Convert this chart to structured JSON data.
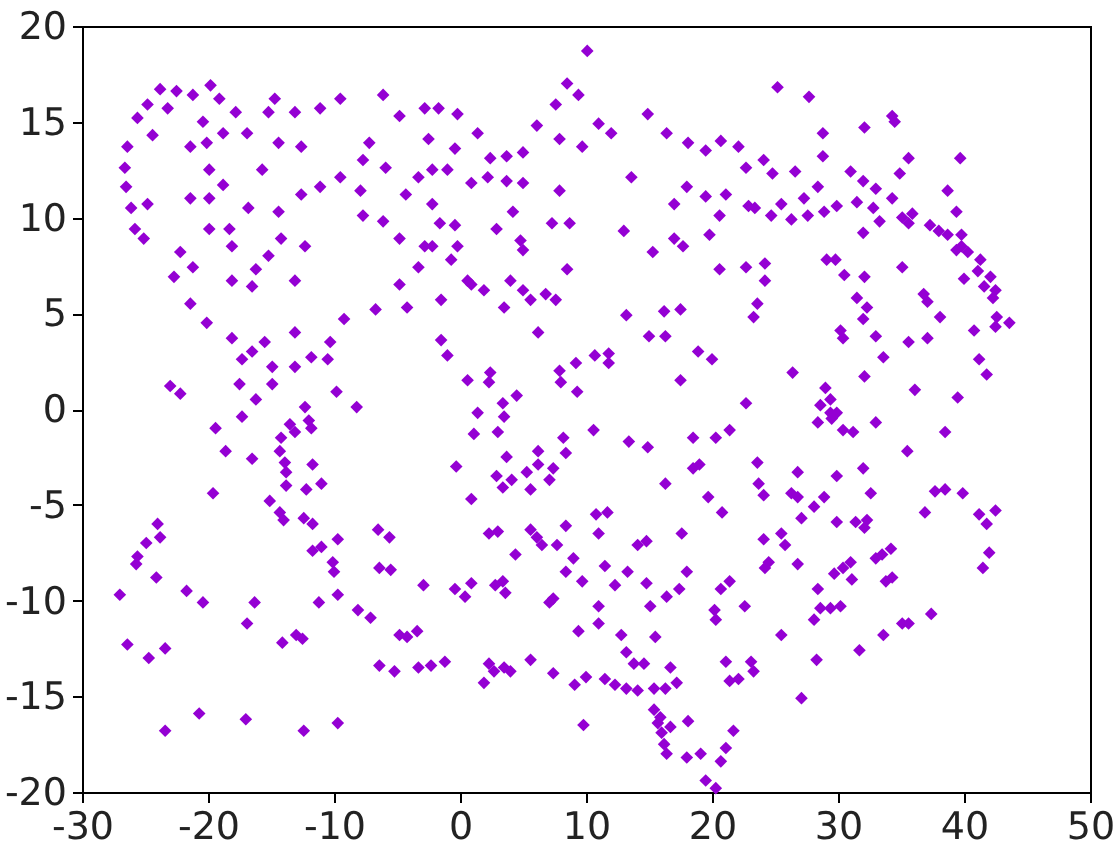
{
  "chart_data": {
    "type": "scatter",
    "color": "#9400d3",
    "marker": "diamond",
    "xlim": [
      -30,
      50
    ],
    "xticks": [
      -30,
      -20,
      -10,
      0,
      10,
      20,
      30,
      40,
      50
    ],
    "ylim": [
      -20,
      20
    ],
    "yticks": [
      -20,
      -15,
      -10,
      -5,
      0,
      5,
      10,
      15,
      20
    ],
    "x": [
      -26.4,
      -26.6,
      -26.5,
      -26.1,
      -25.8,
      -25.1,
      -25.6,
      -24.8,
      -23.8,
      -22.5,
      -21.2,
      -19.8,
      -19.1,
      -20.4,
      -18.8,
      -17.8,
      -21.4,
      -20.1,
      -24.4,
      -23.2,
      -16.9,
      -15.7,
      -15.2,
      -14.7,
      -13.1,
      -11.1,
      -9.5,
      -6.1,
      -4.8,
      -2.8,
      -14.4,
      -12.6,
      -7.2,
      -5.9,
      -7.7,
      -3.3,
      -4.3,
      -19.9,
      -19.9,
      -18.8,
      -21.4,
      -24.8,
      -19.9,
      -18.3,
      -18.1,
      -16.8,
      -14.4,
      -12.6,
      -11.1,
      -9.5,
      -7.9,
      -7.7,
      -6.1,
      -4.8,
      -2.8,
      -14.2,
      -12.3,
      -15.2,
      -16.2,
      -16.5,
      -18.1,
      -13.1,
      -22.7,
      -22.2,
      -21.2,
      -21.4,
      -20.1,
      -18.1,
      -15.5,
      -16.5,
      -17.3,
      -14.9,
      -13.1,
      -11.8,
      -13.1,
      -10.3,
      -9.2,
      -10.5,
      -23.0,
      -22.2,
      -17.5,
      -16.2,
      -14.9,
      -12.3,
      -9.8,
      -8.2,
      -6.7,
      -4.8,
      -4.2,
      -3.3,
      10.1,
      8.5,
      9.4,
      7.6,
      6.1,
      7.9,
      9.7,
      11.0,
      12.0,
      14.9,
      16.4,
      18.1,
      19.5,
      20.7,
      22.1,
      24.1,
      22.7,
      13.6,
      18.0,
      17.0,
      19.5,
      21.1,
      20.6,
      19.8,
      22.9,
      13.0,
      15.3,
      17.0,
      17.7,
      20.6,
      22.7,
      24.2,
      23.6,
      23.3,
      13.2,
      16.2,
      17.5,
      15.0,
      16.3,
      18.9,
      20.0,
      17.5,
      22.7,
      10.7,
      11.8,
      11.8,
      9.2,
      7.9,
      8.0,
      9.3,
      4.5,
      3.4,
      2.4,
      2.3,
      1.4,
      0.6,
      -1.0,
      -1.5,
      6.2,
      7.6,
      6.8,
      5.6,
      5.0,
      4.0,
      3.5,
      1.9,
      0.9,
      -1.5,
      8.5,
      7.3,
      8.7,
      7.9,
      4.8,
      5.0,
      4.2,
      2.9,
      -0.2,
      -0.7,
      -2.2,
      -0.4,
      -1.6,
      -2.2,
      -2.2,
      -1.0,
      -2.5,
      -1.7,
      -0.2,
      1.4,
      -0.4,
      0.9,
      2.2,
      2.4,
      3.7,
      5.0,
      3.7,
      5.0,
      0.6,
      25.2,
      27.7,
      28.8,
      32.1,
      34.3,
      34.5,
      28.8,
      26.6,
      24.8,
      28.4,
      27.3,
      25.5,
      23.4,
      24.7,
      26.3,
      27.6,
      28.9,
      29.9,
      31.0,
      32.0,
      33.0,
      31.5,
      32.8,
      33.3,
      32.0,
      34.9,
      35.6,
      34.3,
      35.1,
      35.9,
      35.6,
      38.7,
      39.7,
      39.4,
      37.3,
      38.0,
      38.7,
      39.8,
      39.8,
      39.4,
      40.3,
      41.3,
      41.1,
      42.1,
      42.5,
      42.3,
      41.6,
      42.6,
      43.6,
      42.5,
      40.0,
      38.1,
      37.1,
      35.6,
      35.1,
      36.8,
      37.1,
      40.8,
      41.2,
      41.8,
      39.5,
      36.1,
      33.6,
      33.0,
      32.1,
      31.5,
      32.3,
      32.0,
      30.4,
      30.2,
      30.5,
      29.1,
      29.8,
      32.1,
      29.0,
      29.4,
      28.6,
      29.9,
      26.4,
      24.2,
      -27.0,
      -26.4,
      -25.7,
      -25.6,
      -24.9,
      -24.0,
      -23.8,
      -24.1,
      -24.7,
      -23.4,
      -23.4,
      -21.7,
      -20.4,
      -20.7,
      -19.6,
      -19.4,
      -18.6,
      -17.3,
      -16.5,
      -16.3,
      -16.9,
      -17.0,
      -14.3,
      -14.2,
      -13.9,
      -13.8,
      -13.8,
      -15.1,
      -14.3,
      -14.0,
      -13.1,
      -13.5,
      -12.0,
      -11.8,
      -11.7,
      -12.2,
      -11.0,
      -12.4,
      -11.7,
      -11.7,
      -11.0,
      -11.2,
      -10.1,
      -10.0,
      -9.7,
      -9.7,
      -14.1,
      -13.0,
      -12.5,
      -12.4,
      -9.7,
      -8.1,
      -7.1,
      -6.5,
      -5.6,
      -6.4,
      -5.5,
      -6.4,
      -5.2,
      -4.8,
      -4.2,
      -3.4,
      -2.9,
      -3.3,
      -2.3,
      1.1,
      3.0,
      3.5,
      -0.3,
      0.9,
      3.7,
      2.9,
      3.4,
      4.1,
      5.3,
      6.2,
      6.2,
      5.6,
      7.4,
      7.1,
      8.2,
      8.4,
      10.6,
      13.4,
      14.9,
      16.3,
      18.5,
      20.3,
      21.4,
      19.0,
      18.5,
      19.7,
      20.8,
      23.6,
      23.7,
      24.1,
      2.3,
      3.0,
      4.4,
      5.6,
      6.1,
      6.5,
      7.7,
      8.4,
      9.0,
      10.8,
      11.7,
      11.0,
      14.1,
      14.8,
      17.6,
      -0.4,
      0.4,
      0.9,
      2.8,
      3.4,
      3.6,
      7.1,
      7.4,
      8.4,
      9.7,
      11.5,
      12.3,
      13.3,
      14.8,
      15.1,
      16.4,
      17.4,
      18.0,
      20.2,
      20.3,
      20.7,
      21.4,
      22.6,
      24.2,
      24.1,
      11.0,
      11.0,
      9.4,
      12.8,
      13.2,
      13.8,
      14.6,
      15.5,
      16.7,
      15.4,
      16.3,
      17.2,
      10.0,
      11.5,
      12.3,
      13.2,
      14.1,
      9.1,
      7.4,
      5.6,
      3.5,
      2.7,
      2.3,
      1.9,
      4.0,
      -1.2,
      9.8,
      15.4,
      15.7,
      16.0,
      16.2,
      16.4,
      15.9,
      16.7,
      18.1,
      18.0,
      19.1,
      20.7,
      21.1,
      21.7,
      19.5,
      20.3,
      21.1,
      21.4,
      22.1,
      23.1,
      23.3,
      29.4,
      28.4,
      29.5,
      30.4,
      31.2,
      33.0,
      25.5,
      25.8,
      24.5,
      26.8,
      26.3,
      26.8,
      27.1,
      26.8,
      28.1,
      28.9,
      29.9,
      29.9,
      32.0,
      32.6,
      31.4,
      32.1,
      32.3,
      28.4,
      28.6,
      29.4,
      30.2,
      28.1,
      29.7,
      30.4,
      31.0,
      31.1,
      33.0,
      33.5,
      34.2,
      33.8,
      34.3,
      33.6,
      35.1,
      35.6,
      37.4,
      31.7,
      28.3,
      25.5,
      27.1,
      35.5,
      38.5,
      37.7,
      38.5,
      39.9,
      36.9,
      41.2,
      42.5,
      41.8,
      42.0,
      41.5
    ],
    "values": [
      13.7,
      12.6,
      11.6,
      10.5,
      9.4,
      8.9,
      15.2,
      15.9,
      16.7,
      16.6,
      16.4,
      16.9,
      16.2,
      15.0,
      14.4,
      15.5,
      13.7,
      13.9,
      14.3,
      15.7,
      14.4,
      12.5,
      15.5,
      16.2,
      15.5,
      15.7,
      16.2,
      16.4,
      15.3,
      15.7,
      13.9,
      13.7,
      13.9,
      12.6,
      13.0,
      12.1,
      11.2,
      12.5,
      11.0,
      11.7,
      11.0,
      10.7,
      9.4,
      9.4,
      8.5,
      10.5,
      10.3,
      11.2,
      11.6,
      12.1,
      11.4,
      10.1,
      9.8,
      8.9,
      8.5,
      8.9,
      8.5,
      8.0,
      7.3,
      6.4,
      6.7,
      6.7,
      6.9,
      8.2,
      7.4,
      5.5,
      4.5,
      3.7,
      3.5,
      3.0,
      2.6,
      2.2,
      4.0,
      2.7,
      2.2,
      3.5,
      4.7,
      2.6,
      1.2,
      0.8,
      1.3,
      0.5,
      1.3,
      0.1,
      0.9,
      0.1,
      5.2,
      6.5,
      5.3,
      7.4,
      18.7,
      17.0,
      16.4,
      15.9,
      14.8,
      14.1,
      13.7,
      14.9,
      14.4,
      15.4,
      14.4,
      13.9,
      13.5,
      14.0,
      13.7,
      13.0,
      12.6,
      12.1,
      11.6,
      10.7,
      11.1,
      11.2,
      10.1,
      9.1,
      10.6,
      9.3,
      8.2,
      8.9,
      8.5,
      7.3,
      7.4,
      6.7,
      5.5,
      4.8,
      4.9,
      5.1,
      5.2,
      3.8,
      3.8,
      3.0,
      2.6,
      1.5,
      0.3,
      2.8,
      2.9,
      2.4,
      2.4,
      2.0,
      1.4,
      0.9,
      0.7,
      0.3,
      1.9,
      1.4,
      -0.2,
      1.5,
      2.8,
      3.6,
      4.0,
      5.7,
      6.0,
      5.7,
      6.2,
      6.7,
      5.3,
      6.2,
      6.5,
      5.7,
      7.3,
      9.7,
      9.7,
      11.4,
      8.8,
      8.3,
      10.3,
      9.4,
      8.5,
      7.8,
      8.5,
      9.6,
      9.7,
      10.7,
      12.5,
      12.5,
      14.1,
      15.7,
      15.4,
      14.4,
      13.6,
      11.8,
      12.1,
      13.1,
      13.2,
      13.4,
      11.9,
      11.8,
      6.7,
      16.8,
      16.3,
      14.4,
      14.7,
      15.3,
      15.0,
      13.2,
      12.4,
      12.3,
      11.6,
      11.0,
      10.7,
      10.5,
      10.1,
      9.9,
      10.1,
      10.3,
      10.6,
      12.4,
      11.9,
      11.5,
      10.8,
      10.5,
      9.8,
      9.2,
      12.3,
      13.1,
      11.0,
      10.0,
      10.2,
      9.7,
      11.4,
      13.1,
      10.3,
      9.6,
      9.3,
      9.1,
      9.1,
      8.5,
      8.3,
      8.2,
      7.8,
      7.2,
      6.9,
      6.2,
      5.8,
      6.4,
      4.8,
      4.5,
      4.3,
      6.8,
      4.8,
      3.7,
      3.5,
      7.4,
      6.0,
      5.6,
      4.1,
      2.6,
      1.8,
      0.6,
      1.0,
      2.7,
      3.8,
      6.9,
      5.8,
      5.3,
      4.7,
      3.7,
      4.1,
      7.0,
      7.8,
      7.8,
      1.7,
      1.1,
      0.5,
      0.2,
      -0.2,
      1.9,
      7.6,
      -9.7,
      -12.3,
      -8.1,
      -7.7,
      -7.0,
      -6.0,
      -6.7,
      -8.8,
      -13.0,
      -12.5,
      -16.8,
      -9.5,
      -10.1,
      -15.9,
      -4.4,
      -1.0,
      -2.2,
      -0.4,
      -2.6,
      -10.1,
      -11.2,
      -16.2,
      -2.2,
      -1.5,
      -2.8,
      -3.3,
      -4.0,
      -4.8,
      -5.4,
      -5.8,
      -1.2,
      -0.8,
      -0.6,
      -1.0,
      -2.9,
      -4.2,
      -3.9,
      -5.7,
      -6.0,
      -7.4,
      -7.2,
      -10.1,
      -8.0,
      -8.5,
      -6.8,
      -9.7,
      -12.2,
      -11.8,
      -12.0,
      -16.8,
      -16.4,
      -10.5,
      -10.9,
      -6.3,
      -6.7,
      -8.3,
      -8.4,
      -13.4,
      -13.7,
      -11.8,
      -11.9,
      -11.6,
      -9.2,
      -13.5,
      -13.4,
      -1.3,
      -1.2,
      -0.4,
      -3.0,
      -4.7,
      -2.5,
      -3.5,
      -4.1,
      -3.7,
      -3.3,
      -2.2,
      -2.9,
      -4.2,
      -3.1,
      -3.7,
      -1.5,
      -2.3,
      -1.1,
      -1.7,
      -2.0,
      -3.9,
      -1.5,
      -1.5,
      -1.1,
      -2.9,
      -3.1,
      -4.6,
      -5.4,
      -2.8,
      -3.9,
      -4.5,
      -6.5,
      -6.4,
      -7.6,
      -6.3,
      -6.7,
      -7.1,
      -7.1,
      -6.1,
      -7.8,
      -5.5,
      -5.4,
      -6.5,
      -7.1,
      -6.9,
      -6.5,
      -9.4,
      -9.8,
      -9.1,
      -9.2,
      -9.0,
      -9.6,
      -10.1,
      -9.9,
      -8.5,
      -9.0,
      -8.2,
      -9.2,
      -8.5,
      -9.1,
      -10.3,
      -9.8,
      -9.4,
      -8.5,
      -10.5,
      -11.0,
      -9.4,
      -9.0,
      -10.3,
      -8.3,
      -6.8,
      -10.3,
      -11.2,
      -11.6,
      -11.8,
      -12.7,
      -13.3,
      -13.3,
      -11.9,
      -13.5,
      -14.6,
      -14.6,
      -14.3,
      -14.0,
      -14.1,
      -14.4,
      -14.6,
      -14.7,
      -14.4,
      -13.8,
      -13.1,
      -13.5,
      -13.7,
      -13.3,
      -14.3,
      -13.7,
      -13.2,
      -16.5,
      -15.7,
      -16.4,
      -16.9,
      -17.5,
      -18.0,
      -16.1,
      -16.6,
      -16.3,
      -18.2,
      -18.0,
      -18.4,
      -17.7,
      -16.8,
      -19.4,
      -19.8,
      -13.2,
      -14.2,
      -14.1,
      -13.2,
      -13.7,
      -0.2,
      -0.7,
      -0.5,
      -1.1,
      -1.2,
      -0.7,
      -6.5,
      -7.1,
      -8.0,
      -3.3,
      -4.4,
      -4.6,
      -5.7,
      -8.1,
      -5.1,
      -4.6,
      -3.5,
      -5.9,
      -3.1,
      -4.4,
      -5.9,
      -6.2,
      -5.8,
      -9.4,
      -10.4,
      -10.4,
      -10.3,
      -11.0,
      -8.6,
      -8.3,
      -8.0,
      -8.9,
      -7.8,
      -7.6,
      -7.3,
      -9.0,
      -8.8,
      -11.8,
      -11.2,
      -11.2,
      -10.7,
      -12.6,
      -13.1,
      -11.8,
      -15.1,
      -2.2,
      -1.2,
      -4.3,
      -4.2,
      -4.4,
      -5.4,
      -5.5,
      -5.3,
      -6.0,
      -7.5,
      -8.3
    ]
  }
}
